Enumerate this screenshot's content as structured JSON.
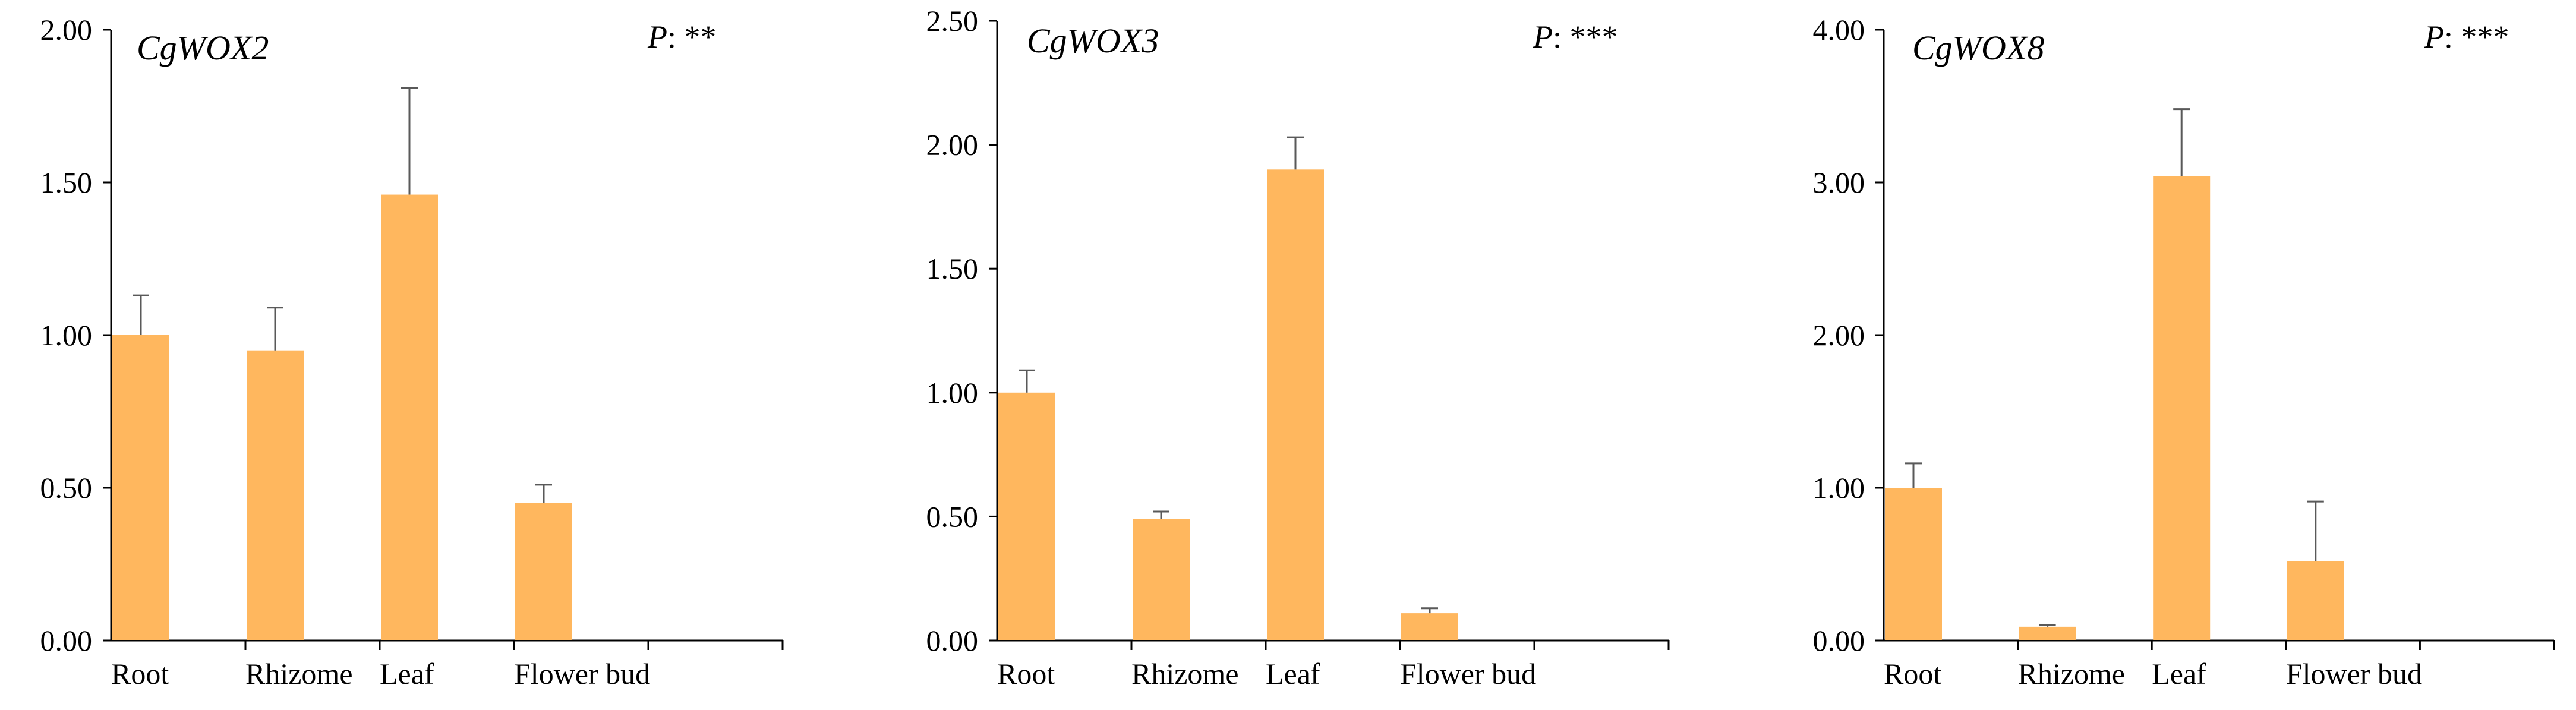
{
  "style": {
    "bar_color": "#FFB75E",
    "error_color": "#595959",
    "axis_color": "#000000"
  },
  "chart_data": [
    {
      "type": "bar",
      "title": "CgWOX2",
      "p_label": "P",
      "p_sep": ": ",
      "p_value": "**",
      "categories": [
        "Root",
        "Rhizome",
        "Leaf",
        "Flower bud"
      ],
      "values": [
        1.0,
        0.95,
        1.46,
        0.45
      ],
      "errors": [
        0.13,
        0.14,
        0.35,
        0.06
      ],
      "yticks": [
        "0.00",
        "0.50",
        "1.00",
        "1.50",
        "2.00"
      ],
      "ylim": [
        0,
        2.0
      ]
    },
    {
      "type": "bar",
      "title": "CgWOX3",
      "p_label": "P",
      "p_sep": ": ",
      "p_value": "***",
      "categories": [
        "Root",
        "Rhizome",
        "Leaf",
        "Flower bud"
      ],
      "values": [
        1.0,
        0.49,
        1.9,
        0.11
      ],
      "errors": [
        0.09,
        0.03,
        0.13,
        0.02
      ],
      "yticks": [
        "0.00",
        "0.50",
        "1.00",
        "1.50",
        "2.00",
        "2.50"
      ],
      "ylim": [
        0,
        2.5
      ]
    },
    {
      "type": "bar",
      "title": "CgWOX8",
      "p_label": "P",
      "p_sep": ": ",
      "p_value": "***",
      "categories": [
        "Root",
        "Rhizome",
        "Leaf",
        "Flower bud"
      ],
      "values": [
        1.0,
        0.09,
        3.04,
        0.52
      ],
      "errors": [
        0.16,
        0.01,
        0.44,
        0.39
      ],
      "yticks": [
        "0.00",
        "1.00",
        "2.00",
        "3.00",
        "4.00"
      ],
      "ylim": [
        0,
        4.0
      ]
    }
  ]
}
